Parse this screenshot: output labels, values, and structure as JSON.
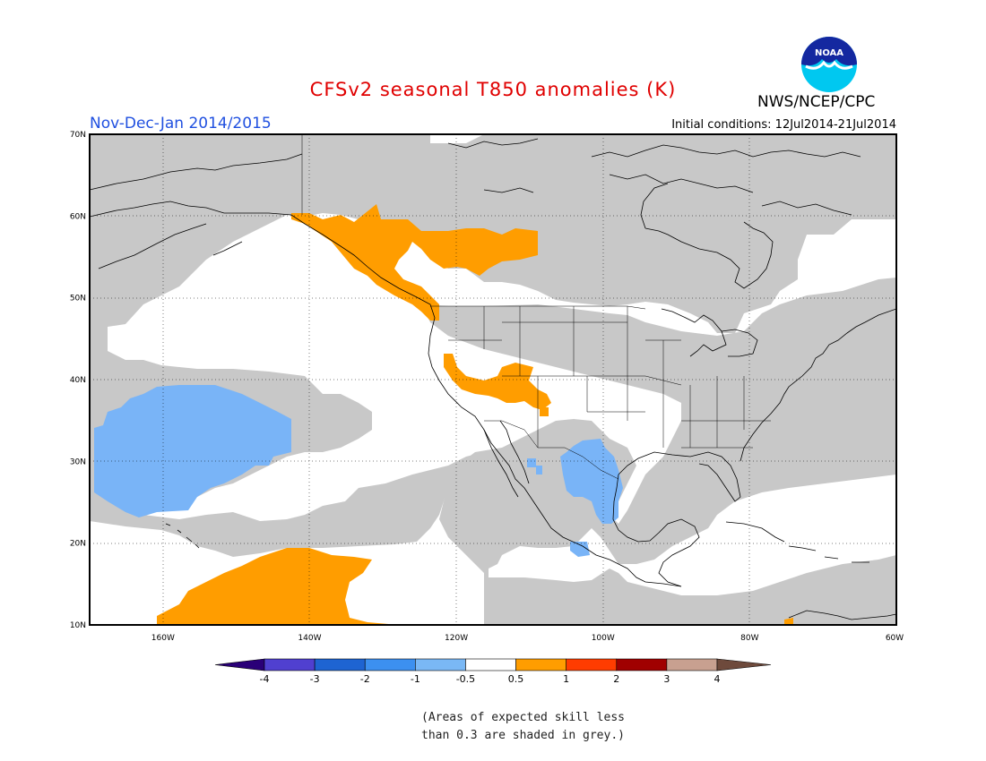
{
  "header": {
    "title": "CFSv2 seasonal T850 anomalies (K)",
    "period": "Nov-Dec-Jan 2014/2015",
    "initial_conditions": "Initial conditions: 12Jul2014-21Jul2014",
    "agency": "NWS/NCEP/CPC",
    "logo_text": "NOAA"
  },
  "map": {
    "lon_range": [
      -170,
      -60
    ],
    "lat_range": [
      10,
      70
    ],
    "lon_ticks": [
      "160W",
      "140W",
      "120W",
      "100W",
      "80W",
      "60W"
    ],
    "lat_ticks": [
      "10N",
      "20N",
      "30N",
      "40N",
      "50N",
      "60N",
      "70N"
    ],
    "colors": {
      "grey_low_skill": "#c8c8c8",
      "positive_0_5_to_1": "#ff9d00",
      "negative_1_to_0_5": "#79b4f7",
      "land_outline": "#000000"
    }
  },
  "colorbar": {
    "levels": [
      "-4",
      "-3",
      "-2",
      "-1",
      "-0.5",
      "0.5",
      "1",
      "2",
      "3",
      "4"
    ],
    "colors": [
      "#2a0078",
      "#5040d0",
      "#1e64d2",
      "#3c90f0",
      "#7ab8f5",
      "#ffffff",
      "#ff9d00",
      "#ff3c00",
      "#a00000",
      "#c8a090",
      "#6e4a3c"
    ]
  },
  "footnote": {
    "line1": "(Areas of expected skill less",
    "line2": "than 0.3 are shaded in grey.)"
  }
}
